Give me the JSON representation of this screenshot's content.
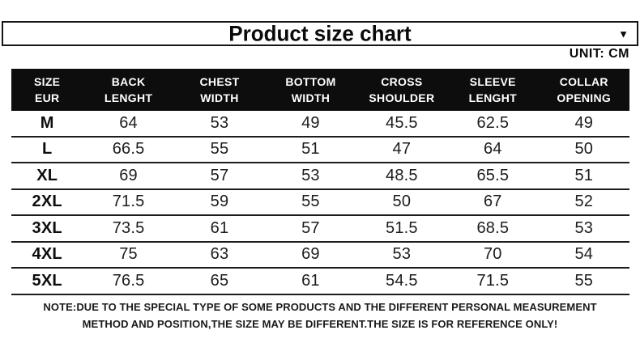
{
  "title_bar": {
    "title": "Product size chart",
    "dropdown_icon": "▼"
  },
  "unit_label": "UNIT: CM",
  "table": {
    "headers": [
      {
        "line1": "SIZE",
        "line2": "EUR"
      },
      {
        "line1": "BACK",
        "line2": "LENGHT"
      },
      {
        "line1": "CHEST",
        "line2": "WIDTH"
      },
      {
        "line1": "BOTTOM",
        "line2": "WIDTH"
      },
      {
        "line1": "CROSS",
        "line2": "SHOULDER"
      },
      {
        "line1": "SLEEVE",
        "line2": "LENGHT"
      },
      {
        "line1": "COLLAR",
        "line2": "OPENING"
      }
    ],
    "rows": [
      {
        "size": "M",
        "values": [
          "64",
          "53",
          "49",
          "45.5",
          "62.5",
          "49"
        ]
      },
      {
        "size": "L",
        "values": [
          "66.5",
          "55",
          "51",
          "47",
          "64",
          "50"
        ]
      },
      {
        "size": "XL",
        "values": [
          "69",
          "57",
          "53",
          "48.5",
          "65.5",
          "51"
        ]
      },
      {
        "size": "2XL",
        "values": [
          "71.5",
          "59",
          "55",
          "50",
          "67",
          "52"
        ]
      },
      {
        "size": "3XL",
        "values": [
          "73.5",
          "61",
          "57",
          "51.5",
          "68.5",
          "53"
        ]
      },
      {
        "size": "4XL",
        "values": [
          "75",
          "63",
          "69",
          "53",
          "70",
          "54"
        ]
      },
      {
        "size": "5XL",
        "values": [
          "76.5",
          "65",
          "61",
          "54.5",
          "71.5",
          "55"
        ]
      }
    ]
  },
  "note": {
    "line1": "NOTE:DUE TO THE SPECIAL TYPE OF SOME PRODUCTS AND THE DIFFERENT PERSONAL MEASUREMENT",
    "line2": "METHOD AND POSITION,THE SIZE MAY BE DIFFERENT.THE SIZE IS FOR REFERENCE ONLY!"
  },
  "colors": {
    "header_bg": "#0d0d0d",
    "header_text": "#ffffff",
    "body_text": "#1a1a1a",
    "border": "#1c1c1c"
  }
}
